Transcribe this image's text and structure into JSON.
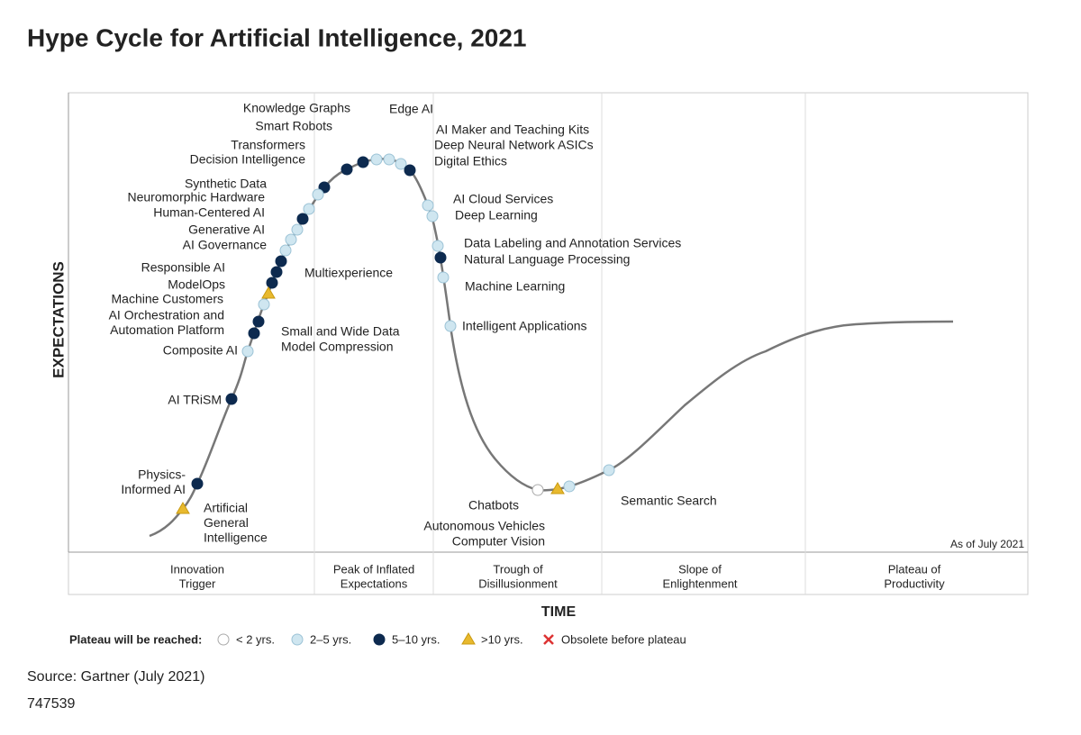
{
  "title": "Hype Cycle for Artificial Intelligence, 2021",
  "y_axis_label": "EXPECTATIONS",
  "x_axis_label": "TIME",
  "as_of": "As of July 2021",
  "phases": [
    [
      "Innovation",
      "Trigger"
    ],
    [
      "Peak of Inflated",
      "Expectations"
    ],
    [
      "Trough of",
      "Disillusionment"
    ],
    [
      "Slope of",
      "Enlightenment"
    ],
    [
      "Plateau of",
      "Productivity"
    ]
  ],
  "legend": {
    "title": "Plateau will be reached:",
    "items": [
      "< 2 yrs.",
      "2–5 yrs.",
      "5–10 yrs.",
      ">10 yrs.",
      "Obsolete before plateau"
    ]
  },
  "nodes": [
    {
      "label": [
        "Knowledge Graphs"
      ],
      "plateau": "5–10 yrs."
    },
    {
      "label": [
        "Smart Robots"
      ],
      "plateau": "5–10 yrs."
    },
    {
      "label": [
        "Edge AI"
      ],
      "plateau": "2–5 yrs."
    },
    {
      "label": [
        "AI Maker and Teaching Kits"
      ],
      "plateau": "2–5 yrs."
    },
    {
      "label": [
        "Deep Neural Network ASICs"
      ],
      "plateau": "2–5 yrs."
    },
    {
      "label": [
        "Digital Ethics"
      ],
      "plateau": "5–10 yrs."
    },
    {
      "label": [
        "Transformers"
      ],
      "plateau": "5–10 yrs."
    },
    {
      "label": [
        "Decision Intelligence"
      ],
      "plateau": "2–5 yrs."
    },
    {
      "label": [
        "Synthetic Data"
      ],
      "plateau": "2–5 yrs."
    },
    {
      "label": [
        "Neuromorphic Hardware"
      ],
      "plateau": "5–10 yrs."
    },
    {
      "label": [
        "Human-Centered AI"
      ],
      "plateau": "2–5 yrs."
    },
    {
      "label": [
        "Generative AI"
      ],
      "plateau": "2–5 yrs."
    },
    {
      "label": [
        "AI Governance"
      ],
      "plateau": "2–5 yrs."
    },
    {
      "label": [
        "Responsible AI"
      ],
      "plateau": "5–10 yrs."
    },
    {
      "label": [
        "Multiexperience"
      ],
      "plateau": "5–10 yrs."
    },
    {
      "label": [
        "ModelOps"
      ],
      "plateau": "5–10 yrs."
    },
    {
      "label": [
        "Machine Customers"
      ],
      "plateau": ">10 yrs."
    },
    {
      "label": [
        "AI Orchestration and",
        "Automation Platform"
      ],
      "plateau": "2–5 yrs."
    },
    {
      "label": [
        "Small and Wide Data"
      ],
      "plateau": "5–10 yrs."
    },
    {
      "label": [
        "Model Compression"
      ],
      "plateau": "5–10 yrs."
    },
    {
      "label": [
        "Composite AI"
      ],
      "plateau": "2–5 yrs."
    },
    {
      "label": [
        "AI TRiSM"
      ],
      "plateau": "5–10 yrs."
    },
    {
      "label": [
        "Physics-",
        "Informed AI"
      ],
      "plateau": "5–10 yrs."
    },
    {
      "label": [
        "Artificial",
        "General",
        "Intelligence"
      ],
      "plateau": ">10 yrs."
    },
    {
      "label": [
        "AI Cloud Services"
      ],
      "plateau": "2–5 yrs."
    },
    {
      "label": [
        "Deep Learning"
      ],
      "plateau": "2–5 yrs."
    },
    {
      "label": [
        "Data Labeling and Annotation Services"
      ],
      "plateau": "2–5 yrs."
    },
    {
      "label": [
        "Natural Language Processing"
      ],
      "plateau": "5–10 yrs."
    },
    {
      "label": [
        "Machine Learning"
      ],
      "plateau": "2–5 yrs."
    },
    {
      "label": [
        "Intelligent Applications"
      ],
      "plateau": "2–5 yrs."
    },
    {
      "label": [
        "Chatbots"
      ],
      "plateau": "< 2 yrs."
    },
    {
      "label": [
        "Autonomous Vehicles"
      ],
      "plateau": ">10 yrs."
    },
    {
      "label": [
        "Computer Vision"
      ],
      "plateau": "2–5 yrs."
    },
    {
      "label": [
        "Semantic Search"
      ],
      "plateau": "2–5 yrs."
    }
  ],
  "source": "Source: Gartner (July 2021)",
  "doc_id": "747539"
}
